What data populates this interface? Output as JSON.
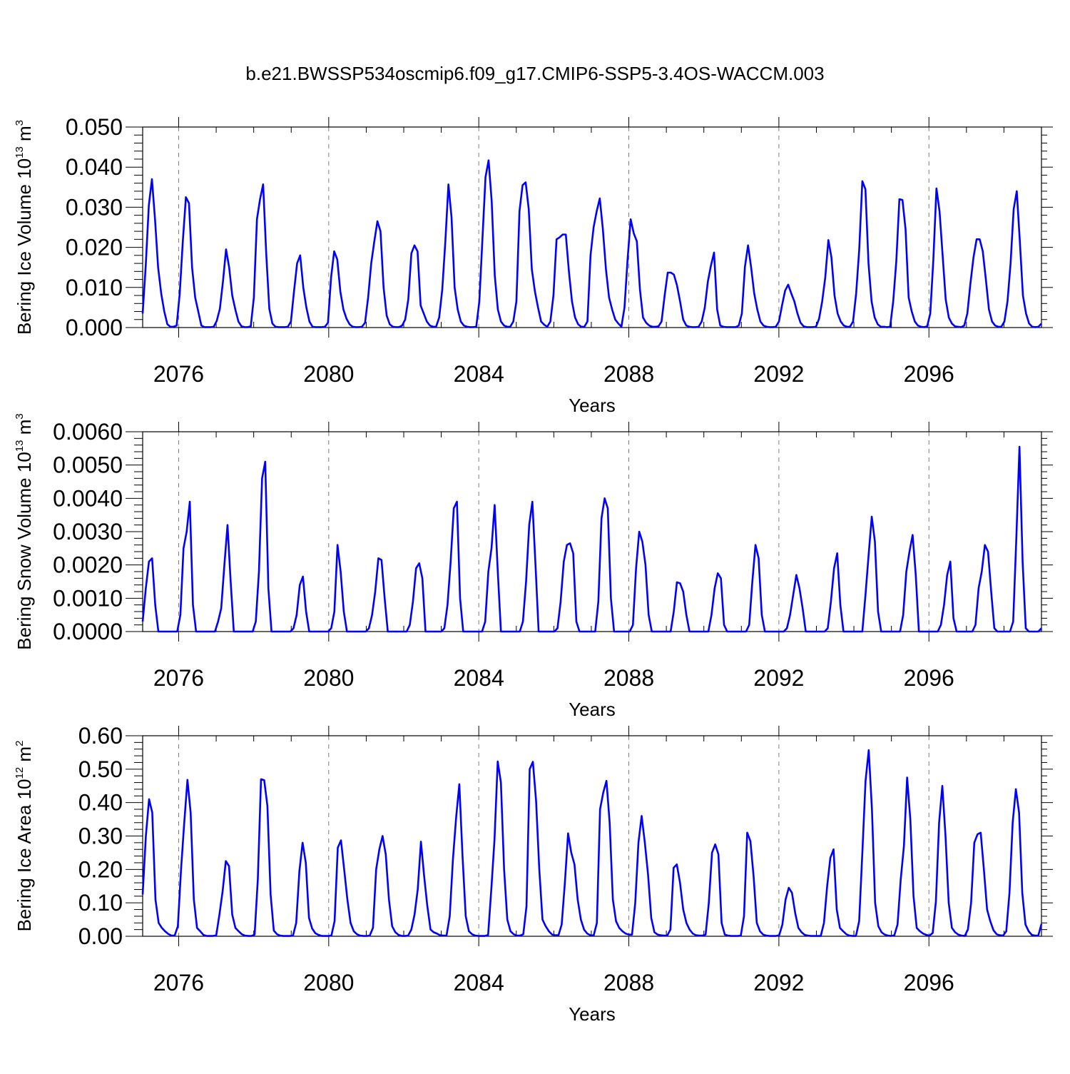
{
  "title": "b.e21.BWSSP534oscmip6.f09_g17.CMIP6-SSP5-3.4OS-WACCM.003",
  "colors": {
    "line": "#0000ff",
    "axis": "#000000",
    "grid": "#7f7f7f"
  },
  "chart_data": [
    {
      "type": "line",
      "name": "ice-volume",
      "ylabel": {
        "text": "Bering Ice Volume 10",
        "exp": "13",
        "unit": " m",
        "unit_exp": "3"
      },
      "xlabel": "Years",
      "xlim": [
        2075.04,
        2099.0
      ],
      "ylim": [
        0.0,
        0.05
      ],
      "x_ticks": [
        2076,
        2080,
        2084,
        2088,
        2092,
        2096
      ],
      "x_tick_labels": [
        "2076",
        "2080",
        "2084",
        "2088",
        "2092",
        "2096"
      ],
      "y_ticks": [
        0.0,
        0.01,
        0.02,
        0.03,
        0.04,
        0.05
      ],
      "y_tick_labels": [
        "0.000",
        "0.010",
        "0.020",
        "0.030",
        "0.040",
        "0.050"
      ],
      "values": [
        0.0035,
        0.0155,
        0.0305,
        0.037,
        0.027,
        0.015,
        0.0085,
        0.004,
        0.0008,
        0.0002,
        0.0002,
        0.0005,
        0.0085,
        0.0215,
        0.0325,
        0.031,
        0.015,
        0.0075,
        0.004,
        0.0005,
        0.0001,
        0.0001,
        0.0001,
        0.0002,
        0.0017,
        0.0047,
        0.0115,
        0.0195,
        0.015,
        0.008,
        0.0045,
        0.0015,
        0.0003,
        0.0001,
        0.0001,
        0.0003,
        0.0075,
        0.027,
        0.032,
        0.0357,
        0.0185,
        0.0047,
        0.001,
        0.0002,
        0.0001,
        0.0001,
        0.0001,
        0.0002,
        0.0015,
        0.009,
        0.016,
        0.018,
        0.01,
        0.005,
        0.0015,
        0.0002,
        0.0001,
        0.0001,
        0.0001,
        0.0002,
        0.0012,
        0.0125,
        0.019,
        0.017,
        0.009,
        0.0045,
        0.0022,
        0.0008,
        0.0002,
        0.0001,
        0.0001,
        0.0002,
        0.0012,
        0.0075,
        0.016,
        0.0215,
        0.0265,
        0.024,
        0.01,
        0.003,
        0.0008,
        0.0002,
        0.0001,
        0.0001,
        0.0005,
        0.002,
        0.007,
        0.0185,
        0.0205,
        0.019,
        0.0055,
        0.0035,
        0.0015,
        0.0005,
        0.0002,
        0.0002,
        0.0025,
        0.0095,
        0.0215,
        0.0357,
        0.0275,
        0.01,
        0.0045,
        0.0015,
        0.0005,
        0.0002,
        0.0001,
        0.0001,
        0.0002,
        0.0065,
        0.022,
        0.0375,
        0.0417,
        0.0315,
        0.013,
        0.0045,
        0.0015,
        0.0005,
        0.0002,
        0.0002,
        0.0015,
        0.0065,
        0.029,
        0.0355,
        0.0362,
        0.0295,
        0.0145,
        0.009,
        0.005,
        0.0015,
        0.0007,
        0.0002,
        0.0015,
        0.008,
        0.022,
        0.0225,
        0.0232,
        0.0232,
        0.014,
        0.0065,
        0.0025,
        0.0008,
        0.0002,
        0.0002,
        0.0015,
        0.018,
        0.025,
        0.029,
        0.0322,
        0.0245,
        0.0145,
        0.0075,
        0.0045,
        0.002,
        0.001,
        0.0002,
        0.005,
        0.017,
        0.027,
        0.0235,
        0.0215,
        0.0095,
        0.0025,
        0.0012,
        0.0005,
        0.0002,
        0.0002,
        0.0003,
        0.0015,
        0.008,
        0.0137,
        0.0137,
        0.0132,
        0.0105,
        0.0065,
        0.002,
        0.0005,
        0.0002,
        0.0001,
        0.0001,
        0.0002,
        0.0015,
        0.005,
        0.0115,
        0.0155,
        0.0187,
        0.0045,
        0.0005,
        0.0002,
        0.0001,
        0.0001,
        0.0001,
        0.0001,
        0.0005,
        0.0035,
        0.0152,
        0.0205,
        0.015,
        0.0085,
        0.0045,
        0.0015,
        0.0005,
        0.0002,
        0.0001,
        0.0001,
        0.0002,
        0.0015,
        0.0055,
        0.0092,
        0.0107,
        0.0085,
        0.0065,
        0.0035,
        0.0012,
        0.0003,
        0.0001,
        0.0001,
        0.0001,
        0.0002,
        0.0022,
        0.0065,
        0.0125,
        0.0218,
        0.0175,
        0.008,
        0.0035,
        0.0015,
        0.0005,
        0.0002,
        0.0002,
        0.0015,
        0.0085,
        0.0195,
        0.0365,
        0.0345,
        0.016,
        0.0065,
        0.0025,
        0.0008,
        0.0002,
        0.0002,
        0.0001,
        0.0002,
        0.0065,
        0.0165,
        0.032,
        0.0318,
        0.0245,
        0.0075,
        0.004,
        0.0015,
        0.0005,
        0.0002,
        0.0001,
        0.0003,
        0.0035,
        0.017,
        0.0347,
        0.029,
        0.018,
        0.007,
        0.0025,
        0.001,
        0.0003,
        0.0002,
        0.0001,
        0.0005,
        0.0035,
        0.011,
        0.0175,
        0.022,
        0.022,
        0.019,
        0.012,
        0.0045,
        0.0015,
        0.0005,
        0.0002,
        0.0002,
        0.0015,
        0.0065,
        0.016,
        0.0295,
        0.034,
        0.0215,
        0.008,
        0.0035,
        0.001,
        0.0002,
        0.0001,
        0.0002,
        0.001
      ]
    },
    {
      "type": "line",
      "name": "snow-volume",
      "ylabel": {
        "text": "Bering Snow Volume 10",
        "exp": "13",
        "unit": " m",
        "unit_exp": "3"
      },
      "xlabel": "Years",
      "xlim": [
        2075.04,
        2099.0
      ],
      "ylim": [
        0.0,
        0.006
      ],
      "x_ticks": [
        2076,
        2080,
        2084,
        2088,
        2092,
        2096
      ],
      "x_tick_labels": [
        "2076",
        "2080",
        "2084",
        "2088",
        "2092",
        "2096"
      ],
      "y_ticks": [
        0.0,
        0.001,
        0.002,
        0.003,
        0.004,
        0.005,
        0.006
      ],
      "y_tick_labels": [
        "0.0000",
        "0.0010",
        "0.0020",
        "0.0030",
        "0.0040",
        "0.0050",
        "0.0060"
      ],
      "values": [
        0.0003,
        0.0013,
        0.0021,
        0.0022,
        0.0008,
        0.0,
        0.0,
        0.0,
        0.0,
        0.0,
        0.0,
        0.0,
        0.0005,
        0.0025,
        0.003,
        0.0039,
        0.0008,
        0.0,
        0.0,
        0.0,
        0.0,
        0.0,
        0.0,
        0.0,
        0.0003,
        0.0007,
        0.002,
        0.0032,
        0.0015,
        0.0,
        0.0,
        0.0,
        0.0,
        0.0,
        0.0,
        0.0,
        0.0003,
        0.0018,
        0.0046,
        0.0051,
        0.0013,
        0.0,
        0.0,
        0.0,
        0.0,
        0.0,
        0.0,
        0.0,
        0.0001,
        0.0005,
        0.0014,
        0.00165,
        0.0006,
        0.0,
        0.0,
        0.0,
        0.0,
        0.0,
        0.0,
        0.0,
        0.0001,
        0.0006,
        0.0026,
        0.0018,
        0.0006,
        0.0,
        0.0,
        0.0,
        0.0,
        0.0,
        0.0,
        0.0,
        0.0001,
        0.0005,
        0.0012,
        0.0022,
        0.00215,
        0.001,
        0.0,
        0.0,
        0.0,
        0.0,
        0.0,
        0.0,
        0.0,
        0.0002,
        0.0009,
        0.0019,
        0.00205,
        0.0016,
        0.0,
        0.0,
        0.0,
        0.0,
        0.0,
        0.0,
        0.0001,
        0.0008,
        0.0021,
        0.0037,
        0.0039,
        0.001,
        0.0,
        0.0,
        0.0,
        0.0,
        0.0,
        0.0,
        0.0,
        0.0003,
        0.0018,
        0.0025,
        0.0038,
        0.0018,
        0.0,
        0.0,
        0.0,
        0.0,
        0.0,
        0.0,
        0.0,
        0.0003,
        0.0015,
        0.0032,
        0.0039,
        0.002,
        0.0,
        0.0,
        0.0,
        0.0,
        0.0,
        0.0,
        0.0001,
        0.0009,
        0.0021,
        0.0026,
        0.00265,
        0.00235,
        0.0003,
        0.0,
        0.0,
        0.0,
        0.0,
        0.0,
        0.0,
        0.0009,
        0.0034,
        0.004,
        0.0037,
        0.001,
        0.0,
        0.0,
        0.0,
        0.0,
        0.0,
        0.0,
        0.0002,
        0.0019,
        0.003,
        0.0027,
        0.002,
        0.0005,
        0.0,
        0.0,
        0.0,
        0.0,
        0.0,
        0.0,
        0.0,
        0.0006,
        0.00148,
        0.00145,
        0.0012,
        0.0005,
        0.0,
        0.0,
        0.0,
        0.0,
        0.0,
        0.0,
        0.0,
        0.0005,
        0.0013,
        0.00175,
        0.0016,
        0.0002,
        0.0,
        0.0,
        0.0,
        0.0,
        0.0,
        0.0,
        0.0,
        0.0002,
        0.0015,
        0.0026,
        0.0022,
        0.0005,
        0.0,
        0.0,
        0.0,
        0.0,
        0.0,
        0.0,
        0.0,
        0.0001,
        0.0005,
        0.0011,
        0.0017,
        0.0013,
        0.0007,
        0.0,
        0.0,
        0.0,
        0.0,
        0.0,
        0.0,
        0.0,
        0.0001,
        0.0009,
        0.0019,
        0.00235,
        0.0008,
        0.0,
        0.0,
        0.0,
        0.0,
        0.0,
        0.0,
        0.0,
        0.0011,
        0.0023,
        0.00345,
        0.0027,
        0.0006,
        0.0,
        0.0,
        0.0,
        0.0,
        0.0,
        0.0,
        0.0,
        0.0005,
        0.0018,
        0.0024,
        0.0029,
        0.0017,
        0.0,
        0.0,
        0.0,
        0.0,
        0.0,
        0.0,
        0.0,
        0.0002,
        0.0008,
        0.0017,
        0.0021,
        0.0004,
        0.0,
        0.0,
        0.0,
        0.0,
        0.0,
        0.0,
        0.0002,
        0.0013,
        0.0018,
        0.0026,
        0.0024,
        0.0012,
        0.0001,
        0.0,
        0.0,
        0.0,
        0.0,
        0.0,
        0.0003,
        0.0028,
        0.00555,
        0.0021,
        0.0001,
        0.0,
        0.0,
        0.0,
        0.0,
        0.0001
      ]
    },
    {
      "type": "line",
      "name": "ice-area",
      "ylabel": {
        "text": "Bering Ice Area 10",
        "exp": "12",
        "unit": " m",
        "unit_exp": "2"
      },
      "xlabel": "Years",
      "xlim": [
        2075.04,
        2099.0
      ],
      "ylim": [
        0.0,
        0.6
      ],
      "x_ticks": [
        2076,
        2080,
        2084,
        2088,
        2092,
        2096
      ],
      "x_tick_labels": [
        "2076",
        "2080",
        "2084",
        "2088",
        "2092",
        "2096"
      ],
      "y_ticks": [
        0.0,
        0.1,
        0.2,
        0.3,
        0.4,
        0.5,
        0.6
      ],
      "y_tick_labels": [
        "0.00",
        "0.10",
        "0.20",
        "0.30",
        "0.40",
        "0.50",
        "0.60"
      ],
      "values": [
        0.125,
        0.3,
        0.41,
        0.37,
        0.11,
        0.04,
        0.025,
        0.015,
        0.007,
        0.002,
        0.002,
        0.03,
        0.2,
        0.34,
        0.468,
        0.37,
        0.11,
        0.025,
        0.015,
        0.004,
        0.001,
        0.001,
        0.001,
        0.003,
        0.065,
        0.135,
        0.225,
        0.21,
        0.065,
        0.025,
        0.015,
        0.006,
        0.002,
        0.001,
        0.001,
        0.005,
        0.17,
        0.47,
        0.467,
        0.39,
        0.125,
        0.017,
        0.006,
        0.002,
        0.001,
        0.001,
        0.001,
        0.002,
        0.04,
        0.195,
        0.28,
        0.22,
        0.055,
        0.023,
        0.009,
        0.004,
        0.001,
        0.001,
        0.001,
        0.002,
        0.045,
        0.265,
        0.287,
        0.2,
        0.11,
        0.04,
        0.015,
        0.006,
        0.002,
        0.001,
        0.001,
        0.002,
        0.025,
        0.2,
        0.26,
        0.3,
        0.245,
        0.11,
        0.03,
        0.012,
        0.004,
        0.001,
        0.001,
        0.002,
        0.02,
        0.065,
        0.14,
        0.283,
        0.18,
        0.09,
        0.02,
        0.012,
        0.008,
        0.003,
        0.002,
        0.002,
        0.06,
        0.23,
        0.355,
        0.455,
        0.24,
        0.06,
        0.015,
        0.006,
        0.002,
        0.001,
        0.001,
        0.001,
        0.004,
        0.14,
        0.29,
        0.523,
        0.46,
        0.2,
        0.05,
        0.015,
        0.006,
        0.002,
        0.002,
        0.006,
        0.09,
        0.5,
        0.522,
        0.405,
        0.2,
        0.05,
        0.03,
        0.015,
        0.005,
        0.003,
        0.003,
        0.035,
        0.16,
        0.308,
        0.25,
        0.215,
        0.11,
        0.05,
        0.02,
        0.008,
        0.003,
        0.002,
        0.04,
        0.38,
        0.43,
        0.465,
        0.34,
        0.11,
        0.045,
        0.025,
        0.015,
        0.008,
        0.005,
        0.005,
        0.1,
        0.28,
        0.36,
        0.28,
        0.185,
        0.055,
        0.012,
        0.005,
        0.003,
        0.002,
        0.002,
        0.02,
        0.205,
        0.215,
        0.16,
        0.08,
        0.04,
        0.02,
        0.008,
        0.003,
        0.002,
        0.002,
        0.005,
        0.1,
        0.25,
        0.275,
        0.245,
        0.04,
        0.005,
        0.002,
        0.001,
        0.001,
        0.001,
        0.002,
        0.06,
        0.31,
        0.285,
        0.18,
        0.04,
        0.015,
        0.005,
        0.002,
        0.001,
        0.001,
        0.001,
        0.003,
        0.035,
        0.11,
        0.145,
        0.13,
        0.07,
        0.025,
        0.012,
        0.004,
        0.002,
        0.001,
        0.001,
        0.001,
        0.001,
        0.04,
        0.15,
        0.235,
        0.26,
        0.08,
        0.025,
        0.015,
        0.006,
        0.002,
        0.001,
        0.001,
        0.045,
        0.25,
        0.465,
        0.557,
        0.38,
        0.1,
        0.03,
        0.012,
        0.005,
        0.002,
        0.001,
        0.003,
        0.035,
        0.17,
        0.27,
        0.475,
        0.35,
        0.12,
        0.025,
        0.015,
        0.008,
        0.004,
        0.002,
        0.01,
        0.105,
        0.34,
        0.45,
        0.3,
        0.1,
        0.025,
        0.012,
        0.005,
        0.002,
        0.001,
        0.02,
        0.1,
        0.28,
        0.305,
        0.31,
        0.2,
        0.08,
        0.045,
        0.018,
        0.006,
        0.003,
        0.002,
        0.015,
        0.13,
        0.34,
        0.44,
        0.37,
        0.13,
        0.035,
        0.015,
        0.004,
        0.002,
        0.002,
        0.037
      ]
    }
  ]
}
